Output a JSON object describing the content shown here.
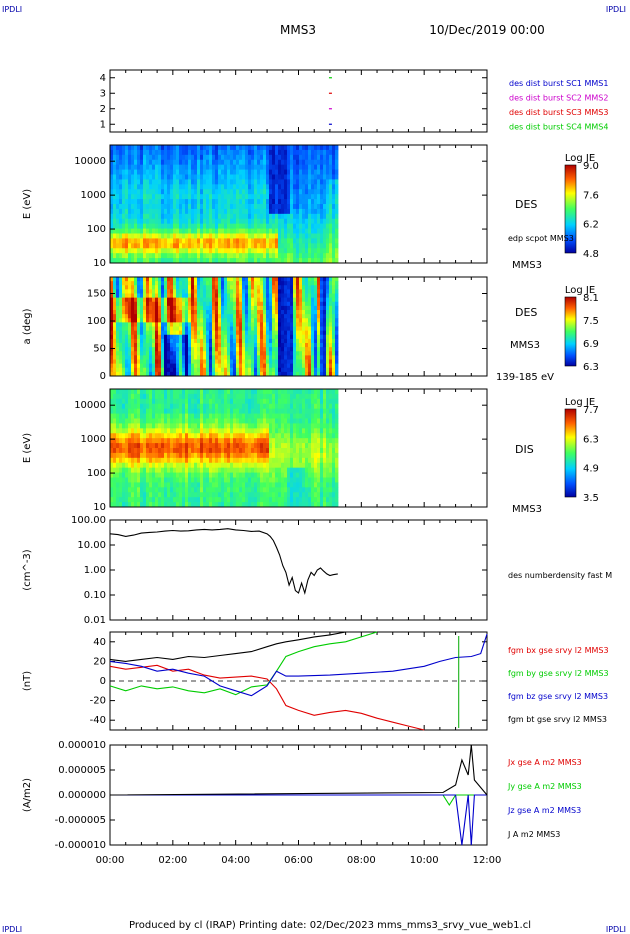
{
  "header": {
    "corner_tl": "IPDLI",
    "corner_tr": "IPDLI",
    "corner_bl": "IPDLI",
    "corner_br": "IPDLI",
    "spacecraft": "MMS3",
    "date": "10/Dec/2019 00:00"
  },
  "footer": {
    "text": "Produced by cl (IRAP)   Printing date: 02/Dec/2023   mms_mms3_srvy_vue_web1.cl"
  },
  "colors": {
    "blue": "#0000cc",
    "magenta": "#cc00cc",
    "red": "#e00000",
    "green": "#00cc00",
    "black": "#000000"
  },
  "chart_data": [
    {
      "type": "scatter",
      "panel": "burst-availability",
      "xlim": [
        "00:00",
        "12:00"
      ],
      "ylim": [
        0.5,
        4.5
      ],
      "yticks": [
        "1",
        "2",
        "3",
        "4"
      ],
      "series": [
        {
          "name": "des dist burst SC1 MMS1",
          "color": "#0000cc",
          "x": [
            "07:01"
          ],
          "y": [
            1
          ]
        },
        {
          "name": "des dist burst SC2 MMS2",
          "color": "#cc00cc",
          "x": [
            "07:01"
          ],
          "y": [
            2
          ]
        },
        {
          "name": "des dist burst SC3 MMS3",
          "color": "#e00000",
          "x": [
            "07:01"
          ],
          "y": [
            3
          ]
        },
        {
          "name": "des dist burst SC4 MMS4",
          "color": "#00cc00",
          "x": [
            "07:01"
          ],
          "y": [
            4
          ]
        }
      ]
    },
    {
      "type": "heatmap",
      "panel": "des-energy",
      "ylabel": "E (eV)",
      "yscale": "log",
      "ylim": [
        10,
        30000
      ],
      "yticks": [
        "10",
        "100",
        "1000",
        "10000"
      ],
      "data_end": "07:15",
      "right_labels": [
        "DES",
        "edp scpot MMS3",
        "MMS3"
      ],
      "colorbar": {
        "title": "Log JE",
        "ticks": [
          "9.0",
          "7.6",
          "6.2",
          "4.8"
        ],
        "min": 4.8,
        "max": 9.0
      }
    },
    {
      "type": "heatmap",
      "panel": "des-pitch-angle",
      "ylabel": "a (deg)",
      "ylim": [
        0,
        180
      ],
      "yticks": [
        "0",
        "50",
        "100",
        "150"
      ],
      "data_end": "07:15",
      "right_labels": [
        "DES",
        "MMS3",
        "139-185 eV"
      ],
      "colorbar": {
        "title": "Log JE",
        "ticks": [
          "8.1",
          "7.5",
          "6.9",
          "6.3"
        ],
        "min": 6.3,
        "max": 8.1
      }
    },
    {
      "type": "heatmap",
      "panel": "dis-energy",
      "ylabel": "E (eV)",
      "yscale": "log",
      "ylim": [
        10,
        30000
      ],
      "yticks": [
        "10",
        "100",
        "1000",
        "10000"
      ],
      "data_end": "07:15",
      "right_labels": [
        "DIS",
        "MMS3"
      ],
      "colorbar": {
        "title": "Log JE",
        "ticks": [
          "7.7",
          "6.3",
          "4.9",
          "3.5"
        ],
        "min": 3.5,
        "max": 7.7
      }
    },
    {
      "type": "line",
      "panel": "density",
      "ylabel": "(cm^-3)",
      "yscale": "log",
      "ylim": [
        0.01,
        100
      ],
      "yticks": [
        "100.00",
        "10.00",
        "1.00",
        "0.10",
        "0.01"
      ],
      "series": [
        {
          "name": "des numberdensity fast M",
          "color": "#000000",
          "x": [
            0,
            0.25,
            0.5,
            0.75,
            1,
            1.25,
            1.5,
            1.75,
            2,
            2.25,
            2.5,
            2.75,
            3,
            3.25,
            3.5,
            3.75,
            4,
            4.25,
            4.5,
            4.75,
            5,
            5.1,
            5.2,
            5.3,
            5.4,
            5.5,
            5.6,
            5.7,
            5.8,
            5.9,
            6,
            6.1,
            6.2,
            6.3,
            6.4,
            6.5,
            6.6,
            6.7,
            6.8,
            6.9,
            7,
            7.1,
            7.25
          ],
          "y": [
            28,
            26,
            22,
            25,
            30,
            32,
            33,
            36,
            38,
            36,
            37,
            40,
            42,
            40,
            42,
            45,
            40,
            38,
            35,
            36,
            28,
            22,
            15,
            8,
            4,
            1.5,
            0.8,
            0.25,
            0.5,
            0.15,
            0.12,
            0.3,
            0.12,
            0.4,
            0.8,
            0.6,
            1.0,
            1.2,
            0.9,
            0.7,
            0.6,
            0.65,
            0.7
          ]
        }
      ]
    },
    {
      "type": "line",
      "panel": "magnetic-field",
      "ylabel": "(nT)",
      "ylim": [
        -50,
        50
      ],
      "yticks": [
        "40",
        "20",
        "0",
        "-20",
        "-40"
      ],
      "series": [
        {
          "name": "fgm bx gse srvy l2 MMS3",
          "color": "#e00000",
          "x": [
            0,
            0.5,
            1,
            1.5,
            2,
            2.5,
            3,
            3.5,
            4,
            4.5,
            5,
            5.3,
            5.6,
            6,
            6.5,
            7,
            7.5,
            8,
            8.5,
            9,
            9.5,
            10
          ],
          "y": [
            15,
            12,
            14,
            16,
            10,
            12,
            6,
            3,
            4,
            5,
            2,
            -8,
            -25,
            -30,
            -35,
            -32,
            -30,
            -33,
            -38,
            -42,
            -46,
            -50
          ]
        },
        {
          "name": "fgm by gse srvy l2 MMS3",
          "color": "#00cc00",
          "x": [
            0,
            0.5,
            1,
            1.5,
            2,
            2.5,
            3,
            3.5,
            4,
            4.5,
            5,
            5.3,
            5.6,
            6,
            6.5,
            7,
            7.5,
            8,
            8.5
          ],
          "y": [
            -5,
            -10,
            -5,
            -8,
            -6,
            -10,
            -12,
            -8,
            -14,
            -6,
            -4,
            10,
            25,
            30,
            35,
            38,
            40,
            45,
            50
          ]
        },
        {
          "name": "fgm bz gse srvy l2 MMS3",
          "color": "#0000cc",
          "x": [
            0,
            0.5,
            1,
            1.5,
            2,
            2.5,
            3,
            3.5,
            4,
            4.5,
            5,
            5.3,
            5.6,
            6,
            7,
            8,
            9,
            10,
            10.5,
            11,
            11.5,
            11.8,
            12
          ],
          "y": [
            20,
            18,
            15,
            10,
            12,
            8,
            5,
            -5,
            -10,
            -15,
            -5,
            10,
            5,
            5,
            6,
            8,
            10,
            15,
            20,
            24,
            25,
            28,
            48
          ]
        },
        {
          "name": "fgm bt gse srvy l2 MMS3",
          "color": "#000000",
          "x": [
            0,
            0.5,
            1,
            1.5,
            2,
            2.5,
            3,
            3.5,
            4,
            4.5,
            5,
            5.3,
            5.6,
            6,
            6.5,
            7,
            7.5
          ],
          "y": [
            22,
            20,
            22,
            24,
            22,
            25,
            24,
            26,
            28,
            30,
            35,
            38,
            40,
            42,
            45,
            47,
            50
          ]
        }
      ]
    },
    {
      "type": "line",
      "panel": "current-density",
      "ylabel": "(A/m2)",
      "ylim": [
        -1e-05,
        1e-05
      ],
      "yticks": [
        "0.000010",
        "0.000005",
        "0.000000",
        "-0.000005",
        "-0.000010"
      ],
      "series": [
        {
          "name": "Jx gse A m2 MMS3",
          "color": "#e00000",
          "x": [
            0,
            12
          ],
          "y": [
            0,
            0
          ]
        },
        {
          "name": "Jy gse A m2 MMS3",
          "color": "#00cc00",
          "x": [
            0,
            10.6,
            10.8,
            11,
            12
          ],
          "y": [
            0,
            0,
            -2e-06,
            0,
            0
          ]
        },
        {
          "name": "Jz gse A m2 MMS3",
          "color": "#0000cc",
          "x": [
            0,
            11,
            11.2,
            11.4,
            11.5,
            11.6,
            12
          ],
          "y": [
            0,
            0,
            -1e-05,
            0,
            -1e-05,
            0,
            0
          ]
        },
        {
          "name": "J A m2 MMS3",
          "color": "#000000",
          "x": [
            0,
            10.6,
            11,
            11.2,
            11.4,
            11.5,
            11.6,
            12
          ],
          "y": [
            0,
            5e-07,
            2e-06,
            7e-06,
            4e-06,
            1e-05,
            3e-06,
            0
          ]
        }
      ]
    }
  ],
  "xaxis": {
    "ticks": [
      "00:00",
      "02:00",
      "04:00",
      "06:00",
      "08:00",
      "10:00",
      "12:00"
    ]
  }
}
